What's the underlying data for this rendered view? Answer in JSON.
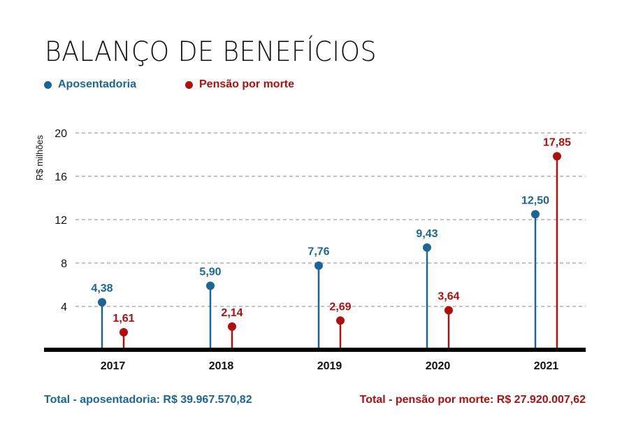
{
  "title": "BALANÇO DE BENEFÍCIOS",
  "legend": [
    {
      "label": "Aposentadoria",
      "color": "#1b6597"
    },
    {
      "label": "Pensão por morte",
      "color": "#b00f0f"
    }
  ],
  "totals": {
    "aposentadoria": "Total - aposentadoria: R$ 39.967.570,82",
    "pensao": "Total - pensão por morte: R$ 27.920.007,62"
  },
  "chart_data": {
    "type": "lollipop",
    "title": "BALANÇO DE BENEFÍCIOS",
    "xlabel": "",
    "ylabel": "R$ milhões",
    "ylim": [
      0,
      20
    ],
    "yticks": [
      4,
      8,
      12,
      16,
      20
    ],
    "grid": true,
    "legend_position": "top-left",
    "categories": [
      "2017",
      "2018",
      "2019",
      "2020",
      "2021"
    ],
    "series": [
      {
        "name": "Aposentadoria",
        "color": "#1b6597",
        "values": [
          4.38,
          5.9,
          7.76,
          9.43,
          12.5
        ],
        "labels": [
          "4,38",
          "5,90",
          "7,76",
          "9,43",
          "12,50"
        ]
      },
      {
        "name": "Pensão por morte",
        "color": "#b00f0f",
        "values": [
          1.61,
          2.14,
          2.69,
          3.64,
          17.85
        ],
        "labels": [
          "1,61",
          "2,14",
          "2,69",
          "3,64",
          "17,85"
        ]
      }
    ]
  }
}
